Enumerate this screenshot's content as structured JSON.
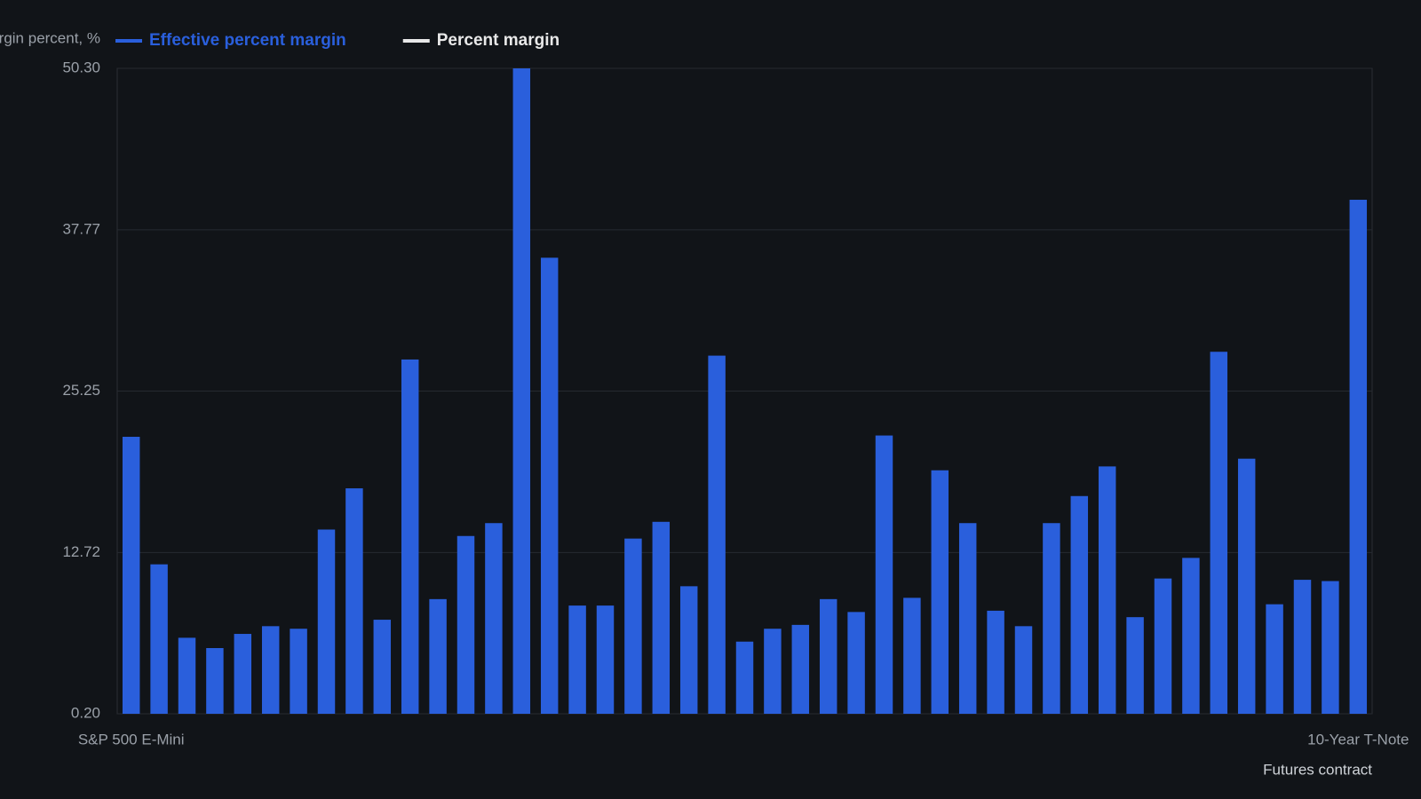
{
  "chart_data": {
    "type": "bar",
    "y_axis_label": "Margin percent, %",
    "x_axis_label": "Futures contract",
    "categories": [
      "S&P 500 E-Mini",
      null,
      null,
      null,
      null,
      null,
      null,
      null,
      null,
      null,
      null,
      null,
      null,
      null,
      null,
      null,
      null,
      null,
      null,
      null,
      null,
      null,
      null,
      null,
      null,
      null,
      null,
      null,
      null,
      null,
      null,
      null,
      null,
      null,
      null,
      null,
      null,
      null,
      null,
      null,
      null,
      null,
      null,
      null,
      "10-Year T-Note"
    ],
    "series": [
      {
        "name": "Effective percent margin",
        "color": "#2a5fdc",
        "values": [
          21.7,
          11.8,
          6.1,
          5.3,
          6.4,
          7.0,
          6.8,
          14.5,
          17.7,
          7.5,
          27.7,
          9.1,
          14.0,
          15.0,
          50.3,
          35.6,
          8.6,
          8.6,
          13.8,
          15.1,
          10.1,
          28.0,
          5.8,
          6.8,
          7.1,
          9.1,
          8.1,
          21.8,
          9.2,
          19.1,
          15.0,
          8.2,
          7.0,
          15.0,
          17.1,
          19.4,
          7.7,
          10.7,
          12.3,
          28.3,
          20.0,
          8.7,
          10.6,
          10.5,
          40.1
        ]
      },
      {
        "name": "Percent margin",
        "color": "#e8e8e8",
        "values": [
          null,
          null,
          null,
          null,
          null,
          null,
          null,
          null,
          null,
          null,
          null,
          null,
          null,
          null,
          null,
          null,
          null,
          null,
          null,
          null,
          null,
          null,
          null,
          null,
          null,
          null,
          null,
          null,
          null,
          null,
          null,
          null,
          null,
          null,
          null,
          null,
          null,
          null,
          null,
          null,
          null,
          null,
          null,
          null,
          null
        ]
      }
    ],
    "ylim": [
      0.2,
      50.3
    ],
    "yticks": [
      {
        "value": 0.2,
        "label": "0.20"
      },
      12.72,
      25.25,
      37.77,
      {
        "value": 50.3,
        "label": "50.30"
      }
    ],
    "grid": true
  }
}
